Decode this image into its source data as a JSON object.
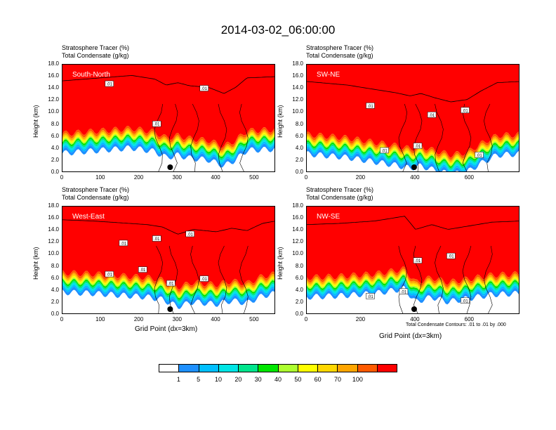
{
  "title": "2014-03-02_06:00:00",
  "colors": [
    "#ffffff",
    "#1e90ff",
    "#00bfff",
    "#00e5e5",
    "#00e58c",
    "#00e600",
    "#adff2f",
    "#ffff00",
    "#ffd700",
    "#ffa500",
    "#ff5a00",
    "#ff0000"
  ],
  "colorbar_labels": [
    "1",
    "5",
    "10",
    "20",
    "30",
    "40",
    "50",
    "60",
    "70",
    "100"
  ],
  "contour_note": "Total Condensate Contours: .01 to .01 by .000",
  "chart_data": [
    {
      "type": "heatmap",
      "title": "South-North",
      "label_top": "Stratosphere Tracer   (%)",
      "label_bottom": "Total Condensate   (g/kg)",
      "ylabel": "Height (km)",
      "xlabel": "",
      "ylim": [
        0,
        18
      ],
      "xlim": [
        0,
        555
      ],
      "yticks": [
        "0.0",
        "2.0",
        "4.0",
        "6.0",
        "8.0",
        "10.0",
        "12.0",
        "14.0",
        "16.0",
        "18.0"
      ],
      "xticks": [
        0,
        100,
        200,
        300,
        400,
        500
      ],
      "tropopause_km": [
        [
          0,
          14.3
        ],
        [
          100,
          14.8
        ],
        [
          180,
          15.2
        ],
        [
          240,
          14.6
        ],
        [
          270,
          13.6
        ],
        [
          300,
          14.0
        ],
        [
          330,
          13.5
        ],
        [
          380,
          13.2
        ],
        [
          420,
          12.2
        ],
        [
          450,
          13.2
        ],
        [
          480,
          14.8
        ],
        [
          555,
          15.0
        ]
      ],
      "contour_labels": [
        ".01",
        ".01",
        ".01"
      ],
      "marker_x": 280
    },
    {
      "type": "heatmap",
      "title": "SW-NE",
      "label_top": "Stratosphere Tracer   (%)",
      "label_bottom": "Total Condensate   (g/kg)",
      "ylabel": "Height (km)",
      "xlabel": "",
      "ylim": [
        0,
        18
      ],
      "xlim": [
        0,
        785
      ],
      "yticks": [
        "0.0",
        "2.0",
        "4.0",
        "6.0",
        "8.0",
        "10.0",
        "12.0",
        "14.0",
        "16.0",
        "18.0"
      ],
      "xticks": [
        0,
        200,
        400,
        600
      ],
      "tropopause_km": [
        [
          0,
          14.2
        ],
        [
          150,
          13.6
        ],
        [
          260,
          12.8
        ],
        [
          330,
          12.3
        ],
        [
          380,
          11.8
        ],
        [
          420,
          12.2
        ],
        [
          470,
          11.5
        ],
        [
          530,
          10.8
        ],
        [
          590,
          11.2
        ],
        [
          640,
          12.6
        ],
        [
          700,
          14.0
        ],
        [
          785,
          14.2
        ]
      ],
      "contour_labels": [
        ".01",
        ".01",
        ".01",
        ".01",
        ".01",
        ".01"
      ],
      "marker_x": 395
    },
    {
      "type": "heatmap",
      "title": "West-East",
      "label_top": "Stratosphere Tracer   (%)",
      "label_bottom": "Total Condensate   (g/kg)",
      "ylabel": "Height (km)",
      "xlabel": "Grid Point (dx=3km)",
      "ylim": [
        0,
        18
      ],
      "xlim": [
        0,
        555
      ],
      "yticks": [
        "0.0",
        "2.0",
        "4.0",
        "6.0",
        "8.0",
        "10.0",
        "12.0",
        "14.0",
        "16.0",
        "18.0"
      ],
      "xticks": [
        0,
        100,
        200,
        300,
        400,
        500
      ],
      "tropopause_km": [
        [
          0,
          14.8
        ],
        [
          80,
          14.6
        ],
        [
          150,
          14.3
        ],
        [
          220,
          14.0
        ],
        [
          260,
          13.6
        ],
        [
          300,
          12.4
        ],
        [
          340,
          13.2
        ],
        [
          400,
          12.8
        ],
        [
          440,
          13.4
        ],
        [
          480,
          13.0
        ],
        [
          520,
          14.2
        ],
        [
          555,
          14.6
        ]
      ],
      "contour_labels": [
        ".01",
        ".01",
        ".01",
        ".01",
        ".01",
        ".01",
        ".01"
      ],
      "marker_x": 280
    },
    {
      "type": "heatmap",
      "title": "NW-SE",
      "label_top": "Stratosphere Tracer   (%)",
      "label_bottom": "Total Condensate   (g/kg)",
      "ylabel": "Height (km)",
      "xlabel": "Grid Point (dx=3km)",
      "ylim": [
        0,
        18
      ],
      "xlim": [
        0,
        785
      ],
      "yticks": [
        "0.0",
        "2.0",
        "4.0",
        "6.0",
        "8.0",
        "10.0",
        "12.0",
        "14.0",
        "16.0",
        "18.0"
      ],
      "xticks": [
        0,
        200,
        400,
        600
      ],
      "tropopause_km": [
        [
          0,
          14.0
        ],
        [
          120,
          14.2
        ],
        [
          250,
          14.6
        ],
        [
          360,
          15.4
        ],
        [
          400,
          13.2
        ],
        [
          460,
          14.0
        ],
        [
          520,
          13.2
        ],
        [
          600,
          13.8
        ],
        [
          680,
          14.4
        ],
        [
          785,
          14.6
        ]
      ],
      "contour_labels": [
        ".01",
        ".01",
        ".01",
        ".01",
        ".01"
      ],
      "marker_x": 395
    }
  ]
}
